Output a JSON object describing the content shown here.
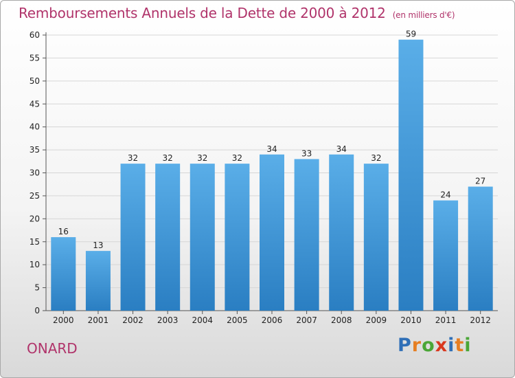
{
  "title": "Remboursements Annuels de la Dette de 2000 à 2012",
  "unit_note": "(en milliers d'€)",
  "place_name": "ONARD",
  "logo": {
    "text": "Proxiti",
    "letters": [
      {
        "char": "P",
        "color": "#2f6fb7"
      },
      {
        "char": "r",
        "color": "#e67e22"
      },
      {
        "char": "o",
        "color": "#4aa637"
      },
      {
        "char": "x",
        "color": "#d9381e"
      },
      {
        "char": "i",
        "color": "#2f6fb7"
      },
      {
        "char": "t",
        "color": "#e67e22"
      },
      {
        "char": "i",
        "color": "#4aa637"
      }
    ]
  },
  "colors": {
    "title": "#b0336a",
    "bar_top": "#5aaee8",
    "bar_bottom": "#2a7ec2",
    "grid": "#d6d6d6",
    "axis": "#555555",
    "label": "#222222"
  },
  "chart_data": {
    "type": "bar",
    "title": "Remboursements Annuels de la Dette de 2000 à 2012",
    "subtitle": "(en milliers d'€)",
    "xlabel": "",
    "ylabel": "",
    "categories": [
      "2000",
      "2001",
      "2002",
      "2003",
      "2004",
      "2005",
      "2006",
      "2007",
      "2008",
      "2009",
      "2010",
      "2011",
      "2012"
    ],
    "values": [
      16,
      13,
      32,
      32,
      32,
      32,
      34,
      33,
      34,
      32,
      59,
      24,
      27
    ],
    "ylim": [
      0,
      60
    ],
    "yticks": [
      0,
      5,
      10,
      15,
      20,
      25,
      30,
      35,
      40,
      45,
      50,
      55,
      60
    ],
    "grid": true,
    "legend": "none"
  }
}
